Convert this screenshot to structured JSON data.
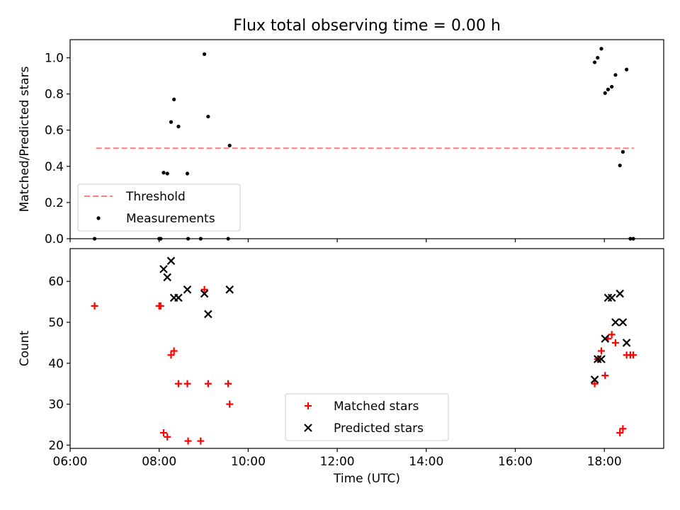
{
  "chart_data": [
    {
      "type": "scatter",
      "title": "Flux total observing time = 0.00 h",
      "xlabel": "",
      "ylabel": "Matched/Predicted stars",
      "xlim": [
        "06:00",
        "19:20"
      ],
      "ylim": [
        0,
        1.1
      ],
      "x_ticks": [
        "06:00",
        "08:00",
        "10:00",
        "12:00",
        "14:00",
        "16:00",
        "18:00"
      ],
      "x_tick_labels_shown": false,
      "y_ticks": [
        "0.0",
        "0.2",
        "0.4",
        "0.6",
        "0.8",
        "1.0"
      ],
      "legend_position": "lower-left",
      "legend": [
        {
          "label": "Threshold",
          "style": "dashed-line",
          "color": "#ff7f7f"
        },
        {
          "label": "Measurements",
          "style": "dot",
          "color": "#000000"
        }
      ],
      "threshold": {
        "name": "Threshold",
        "x": [
          "06:35",
          "18:40"
        ],
        "y": 0.5,
        "color": "#ff7f7f"
      },
      "series": [
        {
          "name": "Measurements",
          "color": "#000000",
          "points": [
            {
              "x": "06:33",
              "y": 0.0
            },
            {
              "x": "08:00",
              "y": 0.0
            },
            {
              "x": "08:02",
              "y": 0.0
            },
            {
              "x": "08:06",
              "y": 0.365
            },
            {
              "x": "08:11",
              "y": 0.36
            },
            {
              "x": "08:16",
              "y": 0.645
            },
            {
              "x": "08:20",
              "y": 0.77
            },
            {
              "x": "08:26",
              "y": 0.62
            },
            {
              "x": "08:38",
              "y": 0.36
            },
            {
              "x": "08:39",
              "y": 0.0
            },
            {
              "x": "08:56",
              "y": 0.0
            },
            {
              "x": "09:01",
              "y": 1.02
            },
            {
              "x": "09:06",
              "y": 0.675
            },
            {
              "x": "09:33",
              "y": 0.0
            },
            {
              "x": "09:35",
              "y": 0.515
            },
            {
              "x": "17:47",
              "y": 0.975
            },
            {
              "x": "17:51",
              "y": 1.0
            },
            {
              "x": "17:56",
              "y": 1.05
            },
            {
              "x": "18:01",
              "y": 0.805
            },
            {
              "x": "18:05",
              "y": 0.825
            },
            {
              "x": "18:10",
              "y": 0.84
            },
            {
              "x": "18:15",
              "y": 0.905
            },
            {
              "x": "18:21",
              "y": 0.405
            },
            {
              "x": "18:25",
              "y": 0.48
            },
            {
              "x": "18:30",
              "y": 0.935
            },
            {
              "x": "18:35",
              "y": 0.0
            },
            {
              "x": "18:39",
              "y": 0.0
            }
          ]
        }
      ]
    },
    {
      "type": "scatter",
      "title": "",
      "xlabel": "Time (UTC)",
      "ylabel": "Count",
      "xlim": [
        "06:00",
        "19:20"
      ],
      "ylim": [
        19.2,
        68
      ],
      "x_ticks": [
        "06:00",
        "08:00",
        "10:00",
        "12:00",
        "14:00",
        "16:00",
        "18:00"
      ],
      "y_ticks": [
        "20",
        "30",
        "40",
        "50",
        "60"
      ],
      "legend_position": "lower-center",
      "legend": [
        {
          "label": "Matched stars",
          "marker": "+",
          "color": "#ff0000"
        },
        {
          "label": "Predicted stars",
          "marker": "x",
          "color": "#000000"
        }
      ],
      "series": [
        {
          "name": "Matched stars",
          "marker": "+",
          "color": "#ff0000",
          "points": [
            {
              "x": "06:33",
              "y": 54
            },
            {
              "x": "08:00",
              "y": 54
            },
            {
              "x": "08:02",
              "y": 54
            },
            {
              "x": "08:06",
              "y": 23
            },
            {
              "x": "08:11",
              "y": 22
            },
            {
              "x": "08:16",
              "y": 42
            },
            {
              "x": "08:20",
              "y": 43
            },
            {
              "x": "08:26",
              "y": 35
            },
            {
              "x": "08:38",
              "y": 35
            },
            {
              "x": "08:39",
              "y": 21
            },
            {
              "x": "08:56",
              "y": 21
            },
            {
              "x": "09:01",
              "y": 58
            },
            {
              "x": "09:06",
              "y": 35
            },
            {
              "x": "09:33",
              "y": 35
            },
            {
              "x": "09:35",
              "y": 30
            },
            {
              "x": "17:47",
              "y": 35
            },
            {
              "x": "17:51",
              "y": 41
            },
            {
              "x": "17:56",
              "y": 43
            },
            {
              "x": "18:01",
              "y": 37
            },
            {
              "x": "18:05",
              "y": 46
            },
            {
              "x": "18:10",
              "y": 47
            },
            {
              "x": "18:15",
              "y": 45
            },
            {
              "x": "18:21",
              "y": 23
            },
            {
              "x": "18:25",
              "y": 24
            },
            {
              "x": "18:30",
              "y": 42
            },
            {
              "x": "18:35",
              "y": 42
            },
            {
              "x": "18:39",
              "y": 42
            }
          ]
        },
        {
          "name": "Predicted stars",
          "marker": "x",
          "color": "#000000",
          "points": [
            {
              "x": "08:06",
              "y": 63
            },
            {
              "x": "08:11",
              "y": 61
            },
            {
              "x": "08:16",
              "y": 65
            },
            {
              "x": "08:20",
              "y": 56
            },
            {
              "x": "08:26",
              "y": 56
            },
            {
              "x": "08:38",
              "y": 58
            },
            {
              "x": "09:01",
              "y": 57
            },
            {
              "x": "09:06",
              "y": 52
            },
            {
              "x": "09:35",
              "y": 58
            },
            {
              "x": "17:47",
              "y": 36
            },
            {
              "x": "17:51",
              "y": 41
            },
            {
              "x": "17:56",
              "y": 41
            },
            {
              "x": "18:01",
              "y": 46
            },
            {
              "x": "18:05",
              "y": 56
            },
            {
              "x": "18:10",
              "y": 56
            },
            {
              "x": "18:15",
              "y": 50
            },
            {
              "x": "18:21",
              "y": 57
            },
            {
              "x": "18:25",
              "y": 50
            },
            {
              "x": "18:30",
              "y": 45
            }
          ]
        }
      ]
    }
  ]
}
